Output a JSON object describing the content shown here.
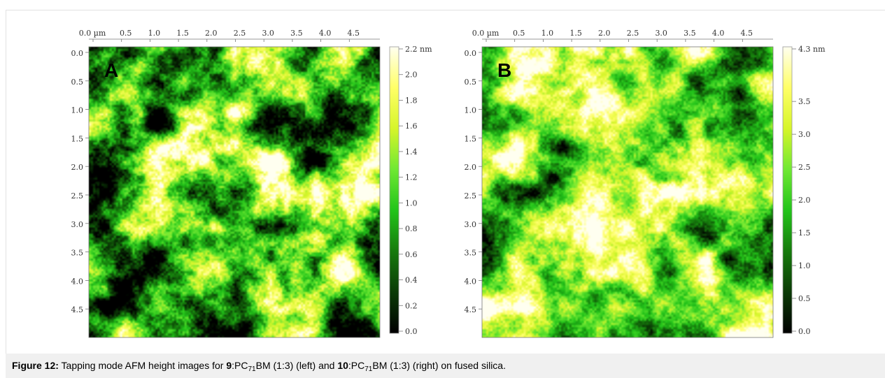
{
  "figure": {
    "panels": [
      {
        "id": "A",
        "label": "A",
        "x_ticks": [
          "0.0 µm",
          "0.5",
          "1.0",
          "1.5",
          "2.0",
          "2.5",
          "3.0",
          "3.5",
          "4.0",
          "4.5"
        ],
        "y_ticks": [
          "0.0",
          "0.5",
          "1.0",
          "1.5",
          "2.0",
          "2.5",
          "3.0",
          "3.5",
          "4.0",
          "4.5"
        ],
        "colorbar_ticks": [
          "2.2 nm",
          "2.0",
          "1.8",
          "1.6",
          "1.4",
          "1.2",
          "1.0",
          "0.8",
          "0.6",
          "0.4",
          "0.2",
          "0.0"
        ],
        "height_max_nm": 2.2,
        "seed": 11
      },
      {
        "id": "B",
        "label": "B",
        "x_ticks": [
          "0.0 µm",
          "0.5",
          "1.0",
          "1.5",
          "2.0",
          "2.5",
          "3.0",
          "3.5",
          "4.0",
          "4.5"
        ],
        "y_ticks": [
          "0.0",
          "0.5",
          "1.0",
          "1.5",
          "2.0",
          "2.5",
          "3.0",
          "3.5",
          "4.0",
          "4.5"
        ],
        "colorbar_ticks": [
          "4.3 nm",
          "3.5",
          "3.0",
          "2.5",
          "2.0",
          "1.5",
          "1.0",
          "0.5",
          "0.0"
        ],
        "height_max_nm": 4.3,
        "seed": 29
      }
    ],
    "colormap": [
      "#000000",
      "#0b3a06",
      "#167a0c",
      "#22c41a",
      "#6fe832",
      "#d6f52a",
      "#ffff66",
      "#fffff0"
    ]
  },
  "caption": {
    "label": "Figure 12:",
    "t1": " Tapping mode AFM height images for ",
    "c1": "9",
    "t2": ":PC",
    "s1": "71",
    "t3": "BM (1:3) (left) and ",
    "c2": "10",
    "t4": ":PC",
    "s2": "71",
    "t5": "BM (1:3) (right) on fused silica."
  }
}
